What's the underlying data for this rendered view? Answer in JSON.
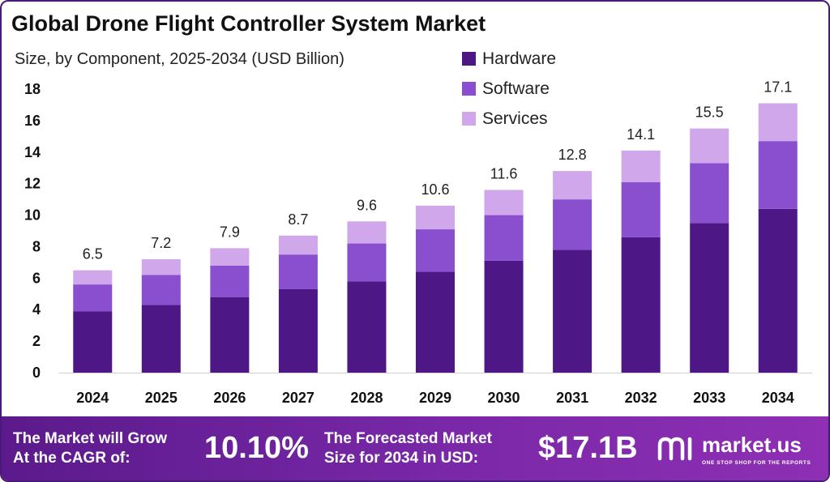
{
  "chart_data": {
    "type": "bar",
    "stacked": true,
    "title": "Global Drone Flight Controller System Market",
    "subtitle": "Size, by Component, 2025-2034 (USD Billion)",
    "categories": [
      "2024",
      "2025",
      "2026",
      "2027",
      "2028",
      "2029",
      "2030",
      "2031",
      "2032",
      "2033",
      "2034"
    ],
    "series": [
      {
        "name": "Hardware",
        "color": "#4d1785",
        "values": [
          3.9,
          4.3,
          4.8,
          5.3,
          5.8,
          6.4,
          7.1,
          7.8,
          8.6,
          9.5,
          10.4
        ]
      },
      {
        "name": "Software",
        "color": "#8a4fcf",
        "values": [
          1.7,
          1.9,
          2.0,
          2.2,
          2.4,
          2.7,
          2.9,
          3.2,
          3.5,
          3.8,
          4.3
        ]
      },
      {
        "name": "Services",
        "color": "#cfa7ea",
        "values": [
          0.9,
          1.0,
          1.1,
          1.2,
          1.4,
          1.5,
          1.6,
          1.8,
          2.0,
          2.2,
          2.4
        ]
      }
    ],
    "totals": [
      "6.5",
      "7.2",
      "7.9",
      "8.7",
      "9.6",
      "10.6",
      "11.6",
      "12.8",
      "14.1",
      "15.5",
      "17.1"
    ],
    "ylim": [
      0,
      18
    ],
    "yticks": [
      "0",
      "2",
      "4",
      "6",
      "8",
      "10",
      "12",
      "14",
      "16",
      "18"
    ],
    "grid": false,
    "legend_position": "top-right"
  },
  "footer": {
    "cagr_label_line1": "The Market will Grow",
    "cagr_label_line2": "At the CAGR of:",
    "cagr_value": "10.10%",
    "forecast_label_line1": "The Forecasted Market",
    "forecast_label_line2": "Size for 2034 in USD:",
    "forecast_value": "$17.1B",
    "brand_name": "market.us",
    "brand_tagline": "ONE STOP SHOP FOR THE REPORTS"
  }
}
